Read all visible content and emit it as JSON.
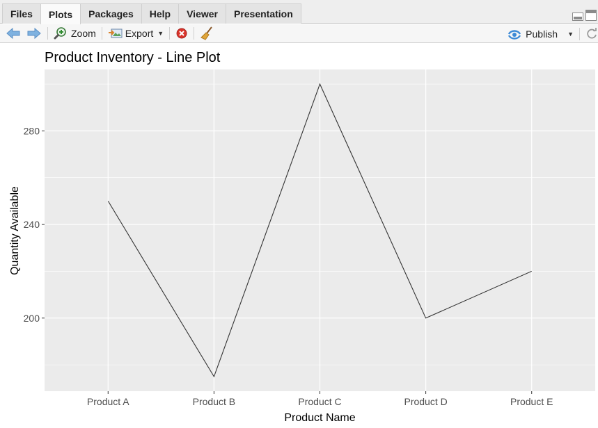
{
  "tabs": [
    {
      "label": "Files",
      "active": false
    },
    {
      "label": "Plots",
      "active": true
    },
    {
      "label": "Packages",
      "active": false
    },
    {
      "label": "Help",
      "active": false
    },
    {
      "label": "Viewer",
      "active": false
    },
    {
      "label": "Presentation",
      "active": false
    }
  ],
  "toolbar": {
    "zoom_label": "Zoom",
    "export_label": "Export",
    "publish_label": "Publish",
    "icons": {
      "back": "back-arrow-icon",
      "forward": "forward-arrow-icon",
      "zoom": "zoom-magnifier-icon",
      "export": "export-image-icon",
      "remove": "remove-plot-icon",
      "clear": "broom-icon",
      "publish": "publish-icon",
      "refresh": "refresh-icon"
    }
  },
  "colors": {
    "panel_bg": "#ebebeb",
    "grid": "#ffffff",
    "line": "#333333",
    "tab_bar": "#eeeeee",
    "accent_blue": "#4a90d9"
  },
  "chart_data": {
    "type": "line",
    "title": "Product Inventory - Line Plot",
    "xlabel": "Product Name",
    "ylabel": "Quantity Available",
    "categories": [
      "Product A",
      "Product B",
      "Product C",
      "Product D",
      "Product E"
    ],
    "values": [
      250,
      175,
      300,
      200,
      220
    ],
    "ylim": [
      168.75,
      306.25
    ],
    "yticks": [
      200,
      240,
      280
    ],
    "grid": true,
    "legend": "none"
  }
}
